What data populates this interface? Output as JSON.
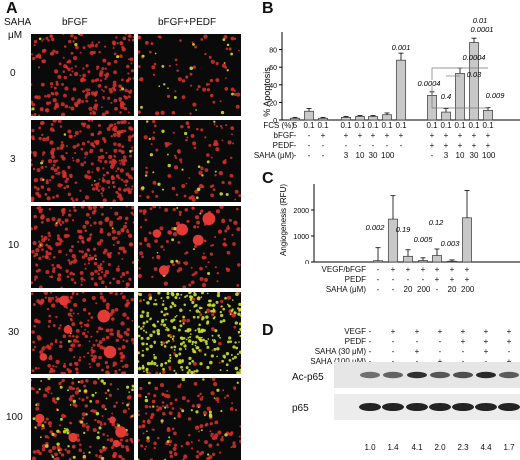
{
  "panelA": {
    "letter": "A",
    "row_header": "SAHA",
    "row_unit": "μM",
    "col1": "bFGF",
    "col2": "bFGF+PEDF",
    "rows": [
      "0",
      "3",
      "10",
      "30",
      "100"
    ]
  },
  "panelB": {
    "letter": "B",
    "chart_data": {
      "type": "bar",
      "ylabel": "% Apoptosis",
      "ylim": [
        0,
        100
      ],
      "yticks": [
        "0",
        "20",
        "40",
        "60",
        "80"
      ],
      "values": [
        2,
        10,
        2,
        3,
        4,
        4,
        6,
        68,
        28,
        9,
        53,
        88,
        11
      ],
      "errors": [
        1,
        3,
        1,
        1,
        1,
        1,
        2,
        8,
        4,
        4,
        6,
        5,
        3
      ],
      "pvalues": [
        "0.001",
        "0.0004",
        "0.4",
        "0.03",
        "0.0004",
        "0.01",
        "0.0001",
        "0.009"
      ],
      "table": [
        {
          "label": "FCS (%)",
          "cells": [
            "5",
            "0.1",
            "0.1",
            "0.1",
            "0.1",
            "0.1",
            "0.1",
            "0.1",
            "0.1",
            "0.1",
            "0.1",
            "0.1",
            "0.1"
          ]
        },
        {
          "label": "bFGF",
          "cells": [
            "-",
            "-",
            "+",
            "+",
            "+",
            "+",
            "+",
            "+",
            "+",
            "+",
            "+",
            "+",
            "+"
          ]
        },
        {
          "label": "PEDF",
          "cells": [
            "-",
            "-",
            "-",
            "-",
            "-",
            "-",
            "-",
            "-",
            "+",
            "+",
            "+",
            "+",
            "+"
          ]
        },
        {
          "label": "SAHA (μM)",
          "cells": [
            "-",
            "-",
            "-",
            "3",
            "10",
            "30",
            "100",
            "",
            "-",
            "3",
            "10",
            "30",
            "100"
          ]
        }
      ]
    }
  },
  "panelC": {
    "letter": "C",
    "chart_data": {
      "type": "bar",
      "ylabel": "Angiogenesis (RFU)",
      "ylim": [
        0,
        3000
      ],
      "yticks": [
        "0",
        "1000",
        "2000"
      ],
      "values": [
        50,
        1650,
        220,
        60,
        250,
        30,
        1700
      ],
      "errors": [
        500,
        900,
        250,
        100,
        250,
        50,
        1050
      ],
      "pvalues": [
        "0.002",
        "0.19",
        "0.005",
        "0.12",
        "0.003"
      ],
      "table": [
        {
          "label": "VEGF/bFGF",
          "cells": [
            "-",
            "+",
            "+",
            "+",
            "+",
            "+",
            "+"
          ]
        },
        {
          "label": "PEDF",
          "cells": [
            "-",
            "-",
            "-",
            "-",
            "+",
            "+",
            "+"
          ]
        },
        {
          "label": "SAHA (μM)",
          "cells": [
            "-",
            "-",
            "20",
            "200",
            "-",
            "20",
            "200"
          ]
        }
      ]
    }
  },
  "panelD": {
    "letter": "D",
    "table": [
      {
        "label": "VEGF",
        "cells": [
          "-",
          "+",
          "+",
          "+",
          "+",
          "+",
          "+"
        ]
      },
      {
        "label": "PEDF",
        "cells": [
          "-",
          "-",
          "-",
          "-",
          "+",
          "+",
          "+"
        ]
      },
      {
        "label": "SAHA (30 μM)",
        "cells": [
          "-",
          "-",
          "+",
          "-",
          "-",
          "+",
          "-"
        ]
      },
      {
        "label": "SAHA (100 μM)",
        "cells": [
          "-",
          "-",
          "-",
          "+",
          "-",
          "-",
          "+"
        ]
      }
    ],
    "blot1": "Ac-p65",
    "blot2": "p65",
    "values": [
      "1.0",
      "1.4",
      "4.1",
      "2.0",
      "2.3",
      "4.4",
      "1.7"
    ]
  },
  "colors": {
    "bar": "#c8c8c8",
    "micro_bg": "#0a0a0a",
    "cell_red": "#d9302c",
    "cell_green": "#c9e02a"
  }
}
